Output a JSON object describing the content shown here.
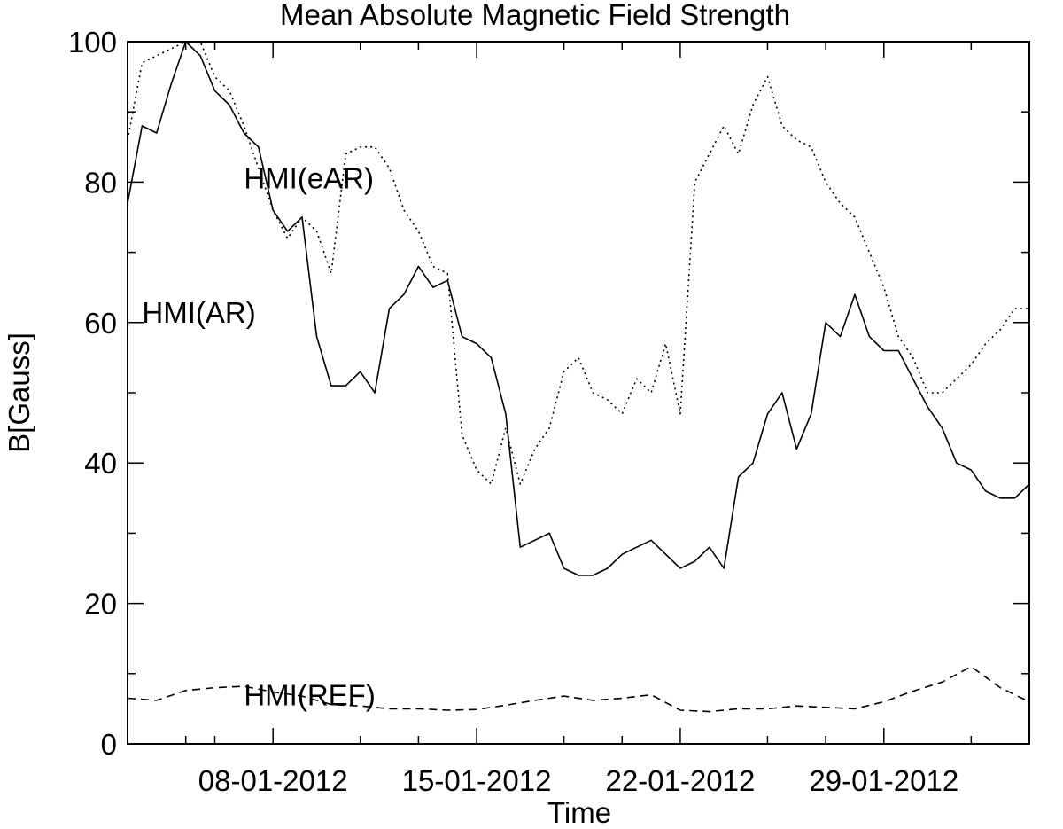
{
  "chart_data": {
    "type": "line",
    "title": "Mean Absolute Magnetic Field Strength",
    "xlabel": "Time",
    "ylabel": "B[Gauss]",
    "xlim": [
      "2012-01-03",
      "2012-02-03"
    ],
    "ylim": [
      0,
      100
    ],
    "grid": false,
    "x_major_ticks": [
      "2012-01-08",
      "2012-01-15",
      "2012-01-22",
      "2012-01-29"
    ],
    "x_tick_labels": [
      "08-01-2012",
      "15-01-2012",
      "22-01-2012",
      "29-01-2012"
    ],
    "x_minor_ticks": [
      "2012-01-05",
      "2012-01-06",
      "2012-01-11",
      "2012-01-13",
      "2012-01-18",
      "2012-01-20",
      "2012-01-25",
      "2012-01-27",
      "2012-02-01"
    ],
    "y_major_ticks": [
      0,
      20,
      40,
      60,
      80,
      100
    ],
    "y_tick_labels": [
      "0",
      "20",
      "40",
      "60",
      "80",
      "100"
    ],
    "y_minor_ticks": [
      10,
      30,
      50,
      70,
      90
    ],
    "series": [
      {
        "name": "HMI(eAR)",
        "style": "dotted",
        "x": [
          "2012-01-03",
          "2012-01-03T12",
          "2012-01-04",
          "2012-01-04T12",
          "2012-01-05",
          "2012-01-05T12",
          "2012-01-06",
          "2012-01-06T12",
          "2012-01-07",
          "2012-01-07T12",
          "2012-01-08",
          "2012-01-08T12",
          "2012-01-09",
          "2012-01-09T12",
          "2012-01-10",
          "2012-01-10T12",
          "2012-01-11",
          "2012-01-11T12",
          "2012-01-12",
          "2012-01-12T12",
          "2012-01-13",
          "2012-01-13T12",
          "2012-01-14",
          "2012-01-14T12",
          "2012-01-15",
          "2012-01-15T12",
          "2012-01-16",
          "2012-01-16T12",
          "2012-01-17",
          "2012-01-17T12",
          "2012-01-18",
          "2012-01-18T12",
          "2012-01-19",
          "2012-01-19T12",
          "2012-01-20",
          "2012-01-20T12",
          "2012-01-21",
          "2012-01-21T12",
          "2012-01-22",
          "2012-01-22T12",
          "2012-01-23",
          "2012-01-23T12",
          "2012-01-24",
          "2012-01-24T12",
          "2012-01-25",
          "2012-01-25T12",
          "2012-01-26",
          "2012-01-26T12",
          "2012-01-27",
          "2012-01-27T12",
          "2012-01-28",
          "2012-01-28T12",
          "2012-01-29",
          "2012-01-29T12",
          "2012-01-30",
          "2012-01-30T12",
          "2012-01-31",
          "2012-01-31T12",
          "2012-02-01",
          "2012-02-01T12",
          "2012-02-02",
          "2012-02-02T12",
          "2012-02-03"
        ],
        "values": [
          86,
          97,
          98,
          99,
          100,
          100,
          95,
          93,
          88,
          82,
          76,
          72,
          75,
          73,
          67,
          84,
          85,
          85,
          82,
          76,
          73,
          68,
          67,
          44,
          39,
          37,
          45,
          37,
          42,
          45,
          53,
          55,
          50,
          49,
          47,
          52,
          50,
          57,
          47,
          80,
          84,
          88,
          84,
          91,
          95,
          88,
          86,
          85,
          80,
          77,
          75,
          70,
          65,
          58,
          55,
          50,
          50,
          52,
          54,
          57,
          59,
          62,
          62
        ]
      },
      {
        "name": "HMI(AR)",
        "style": "solid",
        "x": [
          "2012-01-03",
          "2012-01-03T12",
          "2012-01-04",
          "2012-01-04T12",
          "2012-01-05",
          "2012-01-05T12",
          "2012-01-06",
          "2012-01-06T12",
          "2012-01-07",
          "2012-01-07T12",
          "2012-01-08",
          "2012-01-08T12",
          "2012-01-09",
          "2012-01-09T12",
          "2012-01-10",
          "2012-01-10T12",
          "2012-01-11",
          "2012-01-11T12",
          "2012-01-12",
          "2012-01-12T12",
          "2012-01-13",
          "2012-01-13T12",
          "2012-01-14",
          "2012-01-14T12",
          "2012-01-15",
          "2012-01-15T12",
          "2012-01-16",
          "2012-01-16T12",
          "2012-01-17",
          "2012-01-17T12",
          "2012-01-18",
          "2012-01-18T12",
          "2012-01-19",
          "2012-01-19T12",
          "2012-01-20",
          "2012-01-20T12",
          "2012-01-21",
          "2012-01-21T12",
          "2012-01-22",
          "2012-01-22T12",
          "2012-01-23",
          "2012-01-23T12",
          "2012-01-24",
          "2012-01-24T12",
          "2012-01-25",
          "2012-01-25T12",
          "2012-01-26",
          "2012-01-26T12",
          "2012-01-27",
          "2012-01-27T12",
          "2012-01-28",
          "2012-01-28T12",
          "2012-01-29",
          "2012-01-29T12",
          "2012-01-30",
          "2012-01-30T12",
          "2012-01-31",
          "2012-01-31T12",
          "2012-02-01",
          "2012-02-01T12",
          "2012-02-02",
          "2012-02-02T12",
          "2012-02-03"
        ],
        "values": [
          77,
          88,
          87,
          94,
          100,
          98,
          93,
          91,
          87,
          85,
          76,
          73,
          75,
          58,
          51,
          51,
          53,
          50,
          62,
          64,
          68,
          65,
          66,
          58,
          57,
          55,
          47,
          28,
          29,
          30,
          25,
          24,
          24,
          25,
          27,
          28,
          29,
          27,
          25,
          26,
          28,
          25,
          38,
          40,
          47,
          50,
          42,
          47,
          60,
          58,
          64,
          58,
          56,
          56,
          52,
          48,
          45,
          40,
          39,
          36,
          35,
          35,
          37
        ]
      },
      {
        "name": "HMI(REF)",
        "style": "dashed",
        "x": [
          "2012-01-03",
          "2012-01-04",
          "2012-01-05",
          "2012-01-06",
          "2012-01-07",
          "2012-01-08",
          "2012-01-09",
          "2012-01-10",
          "2012-01-11",
          "2012-01-12",
          "2012-01-13",
          "2012-01-14",
          "2012-01-15",
          "2012-01-16",
          "2012-01-17",
          "2012-01-18",
          "2012-01-19",
          "2012-01-20",
          "2012-01-21",
          "2012-01-22",
          "2012-01-23",
          "2012-01-24",
          "2012-01-25",
          "2012-01-26",
          "2012-01-27",
          "2012-01-28",
          "2012-01-29",
          "2012-01-30",
          "2012-01-31",
          "2012-02-01",
          "2012-02-02",
          "2012-02-03"
        ],
        "values": [
          6.5,
          6.2,
          7.6,
          8.0,
          8.2,
          7.4,
          6.8,
          5.6,
          5.4,
          5.0,
          5.0,
          4.8,
          4.9,
          5.5,
          6.2,
          6.8,
          6.2,
          6.5,
          7.0,
          4.8,
          4.6,
          5.0,
          5.0,
          5.4,
          5.2,
          5.0,
          6.0,
          7.5,
          8.8,
          11.0,
          8.0,
          6.0
        ]
      }
    ],
    "annotations": [
      {
        "text": "HMI(eAR)",
        "x": "2012-01-07",
        "y": 80.6
      },
      {
        "text": "HMI(AR)",
        "x": "2012-01-03T12",
        "y": 61.5
      },
      {
        "text": "HMI(REF)",
        "x": "2012-01-07",
        "y": 7.0
      }
    ]
  }
}
